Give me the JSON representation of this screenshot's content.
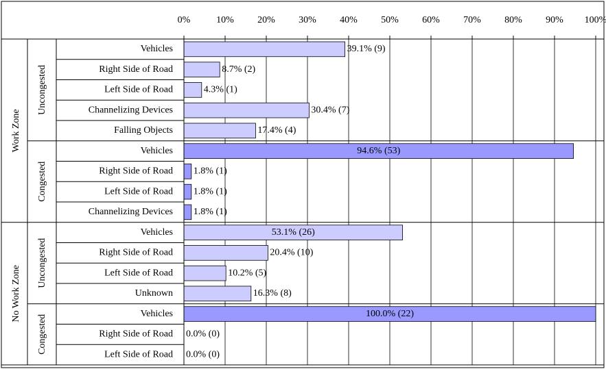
{
  "chart_data": {
    "type": "bar",
    "orientation": "horizontal",
    "grid": true,
    "xlim": [
      0,
      100
    ],
    "xticks": [
      {
        "value": 0,
        "label": "0%"
      },
      {
        "value": 10,
        "label": "10%"
      },
      {
        "value": 20,
        "label": "20%"
      },
      {
        "value": 30,
        "label": "30%"
      },
      {
        "value": 40,
        "label": "40%"
      },
      {
        "value": 50,
        "label": "50%"
      },
      {
        "value": 60,
        "label": "60%"
      },
      {
        "value": 70,
        "label": "70%"
      },
      {
        "value": 80,
        "label": "80%"
      },
      {
        "value": 90,
        "label": "90%"
      },
      {
        "value": 100,
        "label": "100%"
      }
    ],
    "groups": [
      {
        "name": "Work Zone",
        "subgroups": [
          {
            "name": "Uncongested",
            "color": "#ccccff",
            "categories": [
              "Vehicles",
              "Right Side of Road",
              "Left Side of Road",
              "Channelizing Devices",
              "Falling Objects"
            ],
            "values": [
              39.1,
              8.7,
              4.3,
              30.4,
              17.4
            ],
            "value_labels": [
              "39.1% (9)",
              "8.7% (2)",
              "4.3% (1)",
              "30.4% (7)",
              "17.4% (4)"
            ]
          },
          {
            "name": "Congested",
            "color": "#9999ff",
            "categories": [
              "Vehicles",
              "Right Side of Road",
              "Left Side of Road",
              "Channelizing Devices"
            ],
            "values": [
              94.6,
              1.8,
              1.8,
              1.8
            ],
            "value_labels": [
              "94.6% (53)",
              "1.8% (1)",
              "1.8% (1)",
              "1.8% (1)"
            ]
          }
        ]
      },
      {
        "name": "No Work Zone",
        "subgroups": [
          {
            "name": "Uncongested",
            "color": "#ccccff",
            "categories": [
              "Vehicles",
              "Right Side of Road",
              "Left Side of Road",
              "Unknown"
            ],
            "values": [
              53.1,
              20.4,
              10.2,
              16.3
            ],
            "value_labels": [
              "53.1% (26)",
              "20.4% (10)",
              "10.2% (5)",
              "16.3% (8)"
            ]
          },
          {
            "name": "Congested",
            "color": "#9999ff",
            "categories": [
              "Vehicles",
              "Right Side of Road",
              "Left Side of Road"
            ],
            "values": [
              100.0,
              0.0,
              0.0
            ],
            "value_labels": [
              "100.0% (22)",
              "0.0% (0)",
              "0.0% (0)"
            ]
          }
        ]
      }
    ]
  }
}
